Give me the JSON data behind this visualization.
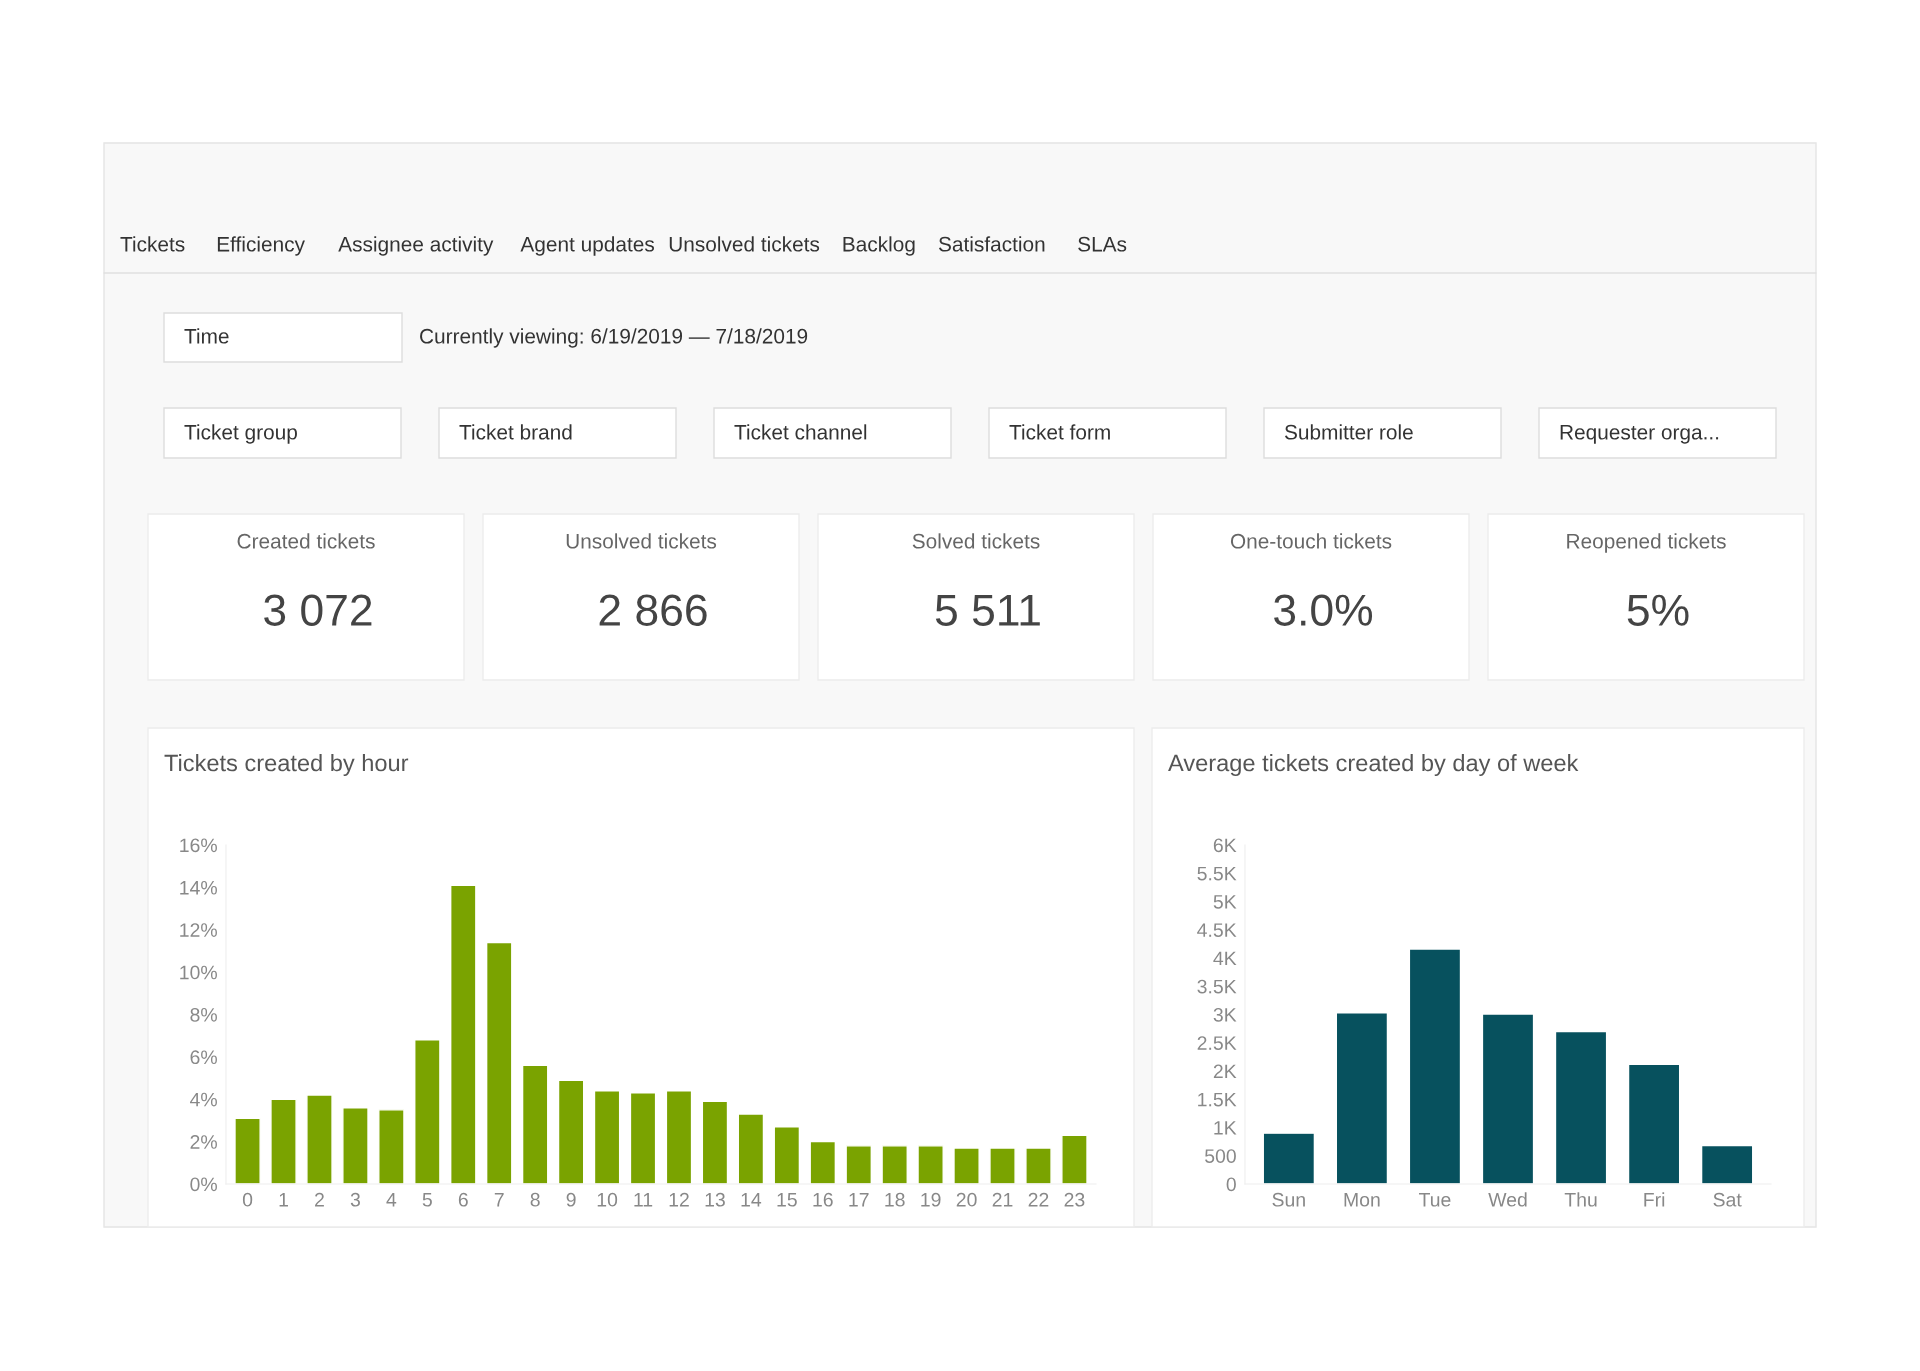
{
  "chart_data": [
    {
      "type": "other",
      "categories": [
        "Tickets",
        "Efficiency",
        "Assignee activity",
        "Agent updates",
        "Unsolved tickets",
        "Backlog",
        "Satisfaction",
        "SLAs"
      ],
      "annotations": [
        "Time",
        "Currently viewing: 6/19/2019 — 7/18/2019",
        "Ticket group",
        "Ticket brand",
        "Ticket channel",
        "Ticket form",
        "Submitter role",
        "Requester orga..."
      ]
    },
    {
      "type": "other",
      "categories": [
        "Created tickets",
        "Unsolved tickets",
        "Solved tickets",
        "One-touch tickets",
        "Reopened tickets"
      ],
      "value_labels": [
        "3 072",
        "2 866",
        "5 511",
        "3.0%",
        "5%"
      ]
    },
    {
      "type": "bar",
      "title": "Tickets created by hour",
      "categories": [
        "0",
        "1",
        "2",
        "3",
        "4",
        "5",
        "6",
        "7",
        "8",
        "9",
        "10",
        "11",
        "12",
        "13",
        "14",
        "15",
        "16",
        "17",
        "18",
        "19",
        "20",
        "21",
        "22",
        "23"
      ],
      "series": [
        {
          "color": "#7aa300",
          "values": [
            3.1,
            4.0,
            4.2,
            3.6,
            3.5,
            6.8,
            14.1,
            11.4,
            5.6,
            4.9,
            4.4,
            4.3,
            4.4,
            3.9,
            3.3,
            2.7,
            2.0,
            1.8,
            1.8,
            1.8,
            1.7,
            1.7,
            1.7,
            2.3
          ]
        }
      ],
      "ylim": [
        0,
        16
      ],
      "yticks": [
        {
          "value": 0,
          "label": "0%"
        },
        {
          "value": 2,
          "label": "2%"
        },
        {
          "value": 4,
          "label": "4%"
        },
        {
          "value": 6,
          "label": "6%"
        },
        {
          "value": 8,
          "label": "8%"
        },
        {
          "value": 10,
          "label": "10%"
        },
        {
          "value": 12,
          "label": "12%"
        },
        {
          "value": 14,
          "label": "14%"
        },
        {
          "value": 16,
          "label": "16%"
        }
      ],
      "grid": false,
      "legend": false
    },
    {
      "type": "bar",
      "title": "Average tickets created by day of week",
      "categories": [
        "Sun",
        "Mon",
        "Tue",
        "Wed",
        "Thu",
        "Fri",
        "Sat"
      ],
      "series": [
        {
          "color": "#07515e",
          "values": [
            900,
            3030,
            4160,
            3010,
            2700,
            2120,
            680
          ]
        }
      ],
      "ylim": [
        0,
        6000
      ],
      "yticks": [
        0,
        500,
        {
          "value": 1000,
          "label": "1K"
        },
        {
          "value": 1500,
          "label": "1.5K"
        },
        {
          "value": 2000,
          "label": "2K"
        },
        {
          "value": 2500,
          "label": "2.5K"
        },
        {
          "value": 3000,
          "label": "3K"
        },
        {
          "value": 3500,
          "label": "3.5K"
        },
        {
          "value": 4000,
          "label": "4K"
        },
        {
          "value": 4500,
          "label": "4.5K"
        },
        {
          "value": 5000,
          "label": "5K"
        },
        {
          "value": 5500,
          "label": "5.5K"
        },
        {
          "value": 6000,
          "label": "6K"
        }
      ],
      "grid": false,
      "legend": false
    }
  ]
}
